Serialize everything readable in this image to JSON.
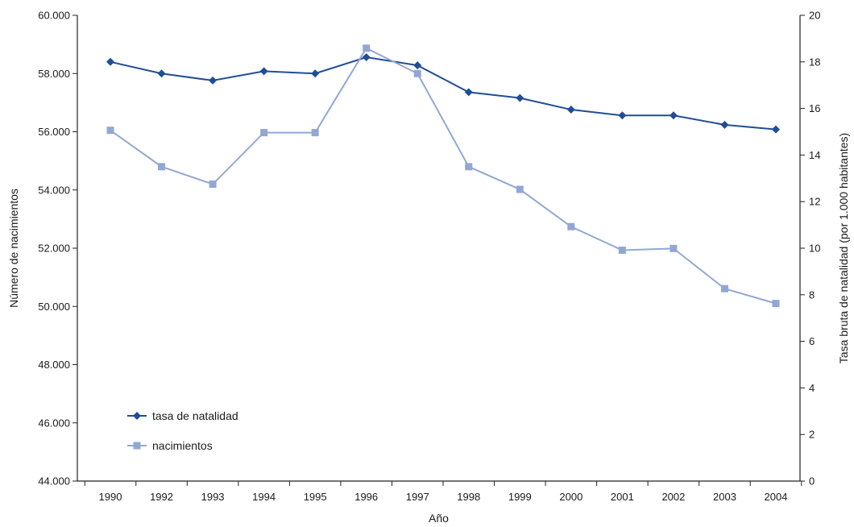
{
  "chart_data": {
    "type": "line",
    "categories": [
      "1990",
      "1992",
      "1993",
      "1994",
      "1995",
      "1996",
      "1997",
      "1998",
      "1999",
      "2000",
      "2001",
      "2002",
      "2003",
      "2004"
    ],
    "xlabel": "Año",
    "ylabel_left": "Número de nacimientos",
    "ylabel_right": "Tasa bruta de natalidad (por 1.000 habitantes)",
    "y_left": {
      "min": 44000,
      "max": 60000,
      "step": 2000,
      "ticks": [
        "44.000",
        "46.000",
        "48.000",
        "50.000",
        "52.000",
        "54.000",
        "56.000",
        "58.000",
        "60.000"
      ]
    },
    "y_right": {
      "min": 0,
      "max": 20,
      "step": 2,
      "ticks": [
        "0",
        "2",
        "4",
        "6",
        "8",
        "10",
        "12",
        "14",
        "16",
        "18",
        "20"
      ]
    },
    "grid": false,
    "legend_position": "bottom-left",
    "series": [
      {
        "name": "tasa de natalidad",
        "axis": "right",
        "color": "#1f4e96",
        "marker": "diamond",
        "values": [
          18.0,
          17.5,
          17.2,
          17.6,
          17.5,
          18.2,
          17.85,
          16.7,
          16.45,
          15.95,
          15.7,
          15.7,
          15.3,
          15.1
        ]
      },
      {
        "name": "nacimientos",
        "axis": "left",
        "color": "#92a7d3",
        "marker": "square",
        "values": [
          56050,
          54800,
          54200,
          55970,
          55970,
          58870,
          58000,
          54800,
          54020,
          52740,
          51930,
          51990,
          50610,
          50100
        ]
      }
    ]
  }
}
